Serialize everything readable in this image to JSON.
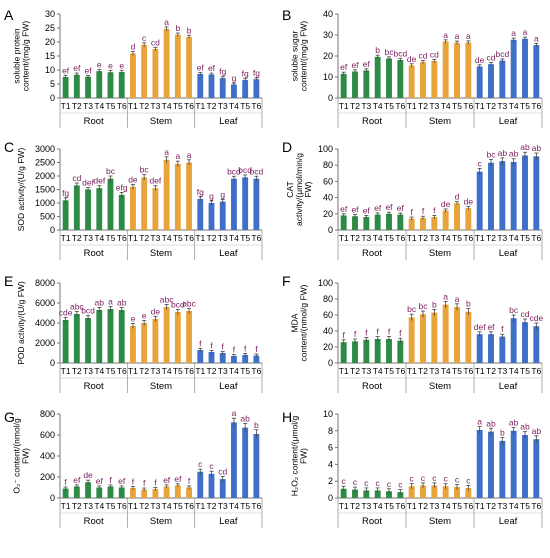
{
  "figure": {
    "treatments": [
      "T1",
      "T2",
      "T3",
      "T4",
      "T5",
      "T6"
    ],
    "tissues": [
      "Root",
      "Stem",
      "Leaf"
    ],
    "colors": {
      "Root": "#2e8b46",
      "Stem": "#e8a33a",
      "Leaf": "#3f6fc8",
      "letter": "#7a1d5e"
    }
  },
  "chart_data": [
    {
      "type": "bar",
      "panel": "A",
      "ylabel": [
        "soluble protein",
        "content/(mg/g FW)"
      ],
      "ylim": [
        0,
        30
      ],
      "yticks": [
        0,
        5,
        10,
        15,
        20,
        25,
        30
      ],
      "series": [
        {
          "name": "Root",
          "values": [
            7.5,
            8.3,
            7.6,
            9.6,
            9.2,
            9.3
          ],
          "errors": [
            0.6,
            0.6,
            0.5,
            0.6,
            0.6,
            0.6
          ],
          "letters": [
            "ef",
            "ef",
            "ef",
            "e",
            "e",
            "e"
          ]
        },
        {
          "name": "Stem",
          "values": [
            15.9,
            19.0,
            17.5,
            24.7,
            22.6,
            21.8
          ],
          "errors": [
            0.7,
            0.7,
            0.6,
            0.7,
            0.6,
            0.6
          ],
          "letters": [
            "d",
            "c",
            "cd",
            "a",
            "b",
            "b"
          ]
        },
        {
          "name": "Leaf",
          "values": [
            8.6,
            8.4,
            7.1,
            4.8,
            6.4,
            6.7
          ],
          "errors": [
            0.5,
            0.5,
            0.5,
            0.5,
            0.5,
            0.5
          ],
          "letters": [
            "ef",
            "ef",
            "fg",
            "g",
            "fg",
            "fg"
          ]
        }
      ]
    },
    {
      "type": "bar",
      "panel": "B",
      "ylabel": [
        "soluble sugar",
        "content/(mg/g FW)"
      ],
      "ylim": [
        0,
        40
      ],
      "yticks": [
        0,
        10,
        20,
        30,
        40
      ],
      "series": [
        {
          "name": "Root",
          "values": [
            11.5,
            12.6,
            13.1,
            19.6,
            18.8,
            18.1
          ],
          "errors": [
            0.8,
            0.8,
            0.8,
            0.8,
            0.8,
            0.8
          ],
          "letters": [
            "ef",
            "ef",
            "ef",
            "b",
            "bc",
            "bcd"
          ]
        },
        {
          "name": "Stem",
          "values": [
            15.5,
            17.1,
            17.6,
            26.9,
            26.3,
            26.4
          ],
          "errors": [
            0.8,
            0.8,
            0.8,
            0.8,
            0.8,
            0.8
          ],
          "letters": [
            "de",
            "cd",
            "cd",
            "a",
            "a",
            "a"
          ]
        },
        {
          "name": "Leaf",
          "values": [
            15.0,
            16.1,
            17.8,
            27.7,
            28.2,
            25.2
          ],
          "errors": [
            0.8,
            0.8,
            0.8,
            0.8,
            0.8,
            0.8
          ],
          "letters": [
            "de",
            "cd",
            "bcd",
            "a",
            "a",
            "a"
          ]
        }
      ]
    },
    {
      "type": "bar",
      "panel": "C",
      "ylabel": [
        "SOD activity/(U/g FW)"
      ],
      "ylim": [
        0,
        3000
      ],
      "yticks": [
        0,
        500,
        1000,
        1500,
        2000,
        2500,
        3000
      ],
      "series": [
        {
          "name": "Root",
          "values": [
            1100,
            1650,
            1500,
            1550,
            1900,
            1300
          ],
          "errors": [
            90,
            90,
            80,
            90,
            100,
            90
          ],
          "letters": [
            "fg",
            "cd",
            "def",
            "def",
            "bc",
            "efg"
          ]
        },
        {
          "name": "Stem",
          "values": [
            1600,
            1950,
            1550,
            2600,
            2450,
            2500
          ],
          "errors": [
            90,
            100,
            90,
            110,
            100,
            100
          ],
          "letters": [
            "de",
            "bc",
            "def",
            "a",
            "a",
            "a"
          ]
        },
        {
          "name": "Leaf",
          "values": [
            1150,
            1000,
            1050,
            1900,
            1950,
            1900
          ],
          "errors": [
            80,
            80,
            80,
            90,
            90,
            90
          ],
          "letters": [
            "fg",
            "g",
            "g",
            "bcd",
            "bcd",
            "bcd"
          ]
        }
      ]
    },
    {
      "type": "bar",
      "panel": "D",
      "ylabel": [
        "CAT",
        "activity/(μmol/min/g",
        "FW)"
      ],
      "ylim": [
        0,
        100
      ],
      "yticks": [
        0,
        20,
        40,
        60,
        80,
        100
      ],
      "series": [
        {
          "name": "Root",
          "values": [
            18,
            17,
            16,
            19,
            20,
            19
          ],
          "errors": [
            2,
            2,
            2,
            2,
            2,
            2
          ],
          "letters": [
            "ef",
            "ef",
            "ef",
            "ef",
            "ef",
            "ef"
          ]
        },
        {
          "name": "Stem",
          "values": [
            14,
            15,
            16,
            24,
            33,
            27
          ],
          "errors": [
            2,
            2,
            2,
            2,
            2,
            2
          ],
          "letters": [
            "f",
            "f",
            "f",
            "de",
            "d",
            "de"
          ]
        },
        {
          "name": "Leaf",
          "values": [
            72,
            83,
            85,
            84,
            92,
            91
          ],
          "errors": [
            4,
            4,
            4,
            4,
            4,
            4
          ],
          "letters": [
            "c",
            "bc",
            "ab",
            "ab",
            "ab",
            "ab"
          ]
        }
      ]
    },
    {
      "type": "bar",
      "panel": "E",
      "ylabel": [
        "POD activity/(U/g FW)"
      ],
      "ylim": [
        0,
        8000
      ],
      "yticks": [
        0,
        2000,
        4000,
        6000,
        8000
      ],
      "series": [
        {
          "name": "Root",
          "values": [
            4300,
            4900,
            4500,
            5300,
            5400,
            5300
          ],
          "errors": [
            250,
            250,
            250,
            250,
            250,
            250
          ],
          "letters": [
            "cde",
            "abc",
            "bcd",
            "ab",
            "a",
            "ab"
          ]
        },
        {
          "name": "Stem",
          "values": [
            3700,
            4000,
            4400,
            5600,
            5100,
            5200
          ],
          "errors": [
            250,
            250,
            250,
            250,
            250,
            250
          ],
          "letters": [
            "e",
            "e",
            "de",
            "abc",
            "bcd",
            "abc"
          ]
        },
        {
          "name": "Leaf",
          "values": [
            1300,
            1100,
            1000,
            700,
            800,
            750
          ],
          "errors": [
            150,
            150,
            150,
            150,
            150,
            150
          ],
          "letters": [
            "f",
            "f",
            "f",
            "f",
            "f",
            "f"
          ]
        }
      ]
    },
    {
      "type": "bar",
      "panel": "F",
      "ylabel": [
        "MDA",
        "content/(nmol/g FW)"
      ],
      "ylim": [
        0,
        100
      ],
      "yticks": [
        0,
        20,
        40,
        60,
        80,
        100
      ],
      "series": [
        {
          "name": "Root",
          "values": [
            26,
            27,
            29,
            30,
            30,
            28
          ],
          "errors": [
            3,
            3,
            3,
            3,
            3,
            3
          ],
          "letters": [
            "f",
            "f",
            "f",
            "f",
            "f",
            "f"
          ]
        },
        {
          "name": "Stem",
          "values": [
            57,
            61,
            63,
            73,
            70,
            64
          ],
          "errors": [
            4,
            4,
            4,
            4,
            4,
            4
          ],
          "letters": [
            "bc",
            "bc",
            "b",
            "a",
            "a",
            "b"
          ]
        },
        {
          "name": "Leaf",
          "values": [
            36,
            36,
            33,
            56,
            51,
            46
          ],
          "errors": [
            3,
            3,
            3,
            4,
            4,
            4
          ],
          "letters": [
            "def",
            "ef",
            "f",
            "bc",
            "cd",
            "cde"
          ]
        }
      ]
    },
    {
      "type": "bar",
      "panel": "G",
      "ylabel": [
        "O₂⁻ content/(nmol/g",
        "FW)"
      ],
      "ylim": [
        0,
        800
      ],
      "yticks": [
        0,
        200,
        400,
        600,
        800
      ],
      "series": [
        {
          "name": "Root",
          "values": [
            90,
            110,
            150,
            100,
            110,
            100
          ],
          "errors": [
            15,
            15,
            20,
            15,
            15,
            15
          ],
          "letters": [
            "f",
            "ef",
            "de",
            "ef",
            "f",
            "ef"
          ]
        },
        {
          "name": "Stem",
          "values": [
            95,
            80,
            85,
            110,
            120,
            100
          ],
          "errors": [
            15,
            15,
            15,
            15,
            15,
            15
          ],
          "letters": [
            "f",
            "f",
            "f",
            "ef",
            "ef",
            "f"
          ]
        },
        {
          "name": "Leaf",
          "values": [
            250,
            230,
            180,
            720,
            670,
            610
          ],
          "errors": [
            25,
            25,
            25,
            40,
            40,
            40
          ],
          "letters": [
            "c",
            "c",
            "cd",
            "a",
            "ab",
            "b"
          ]
        }
      ]
    },
    {
      "type": "bar",
      "panel": "H",
      "ylabel": [
        "H₂O₂ content/(μmol/g",
        "FW)"
      ],
      "ylim": [
        0,
        10
      ],
      "yticks": [
        0,
        2,
        4,
        6,
        8,
        10
      ],
      "series": [
        {
          "name": "Root",
          "values": [
            1.1,
            1.0,
            0.9,
            0.9,
            0.8,
            0.7
          ],
          "errors": [
            0.3,
            0.3,
            0.3,
            0.3,
            0.3,
            0.3
          ],
          "letters": [
            "c",
            "c",
            "c",
            "c",
            "c",
            "c"
          ]
        },
        {
          "name": "Stem",
          "values": [
            1.4,
            1.5,
            1.5,
            1.4,
            1.3,
            1.2
          ],
          "errors": [
            0.3,
            0.3,
            0.3,
            0.3,
            0.3,
            0.3
          ],
          "letters": [
            "c",
            "c",
            "c",
            "c",
            "c",
            "c"
          ]
        },
        {
          "name": "Leaf",
          "values": [
            8.1,
            7.9,
            6.8,
            8.0,
            7.5,
            7.0
          ],
          "errors": [
            0.4,
            0.4,
            0.4,
            0.4,
            0.4,
            0.4
          ],
          "letters": [
            "a",
            "ab",
            "b",
            "ab",
            "ab",
            "ab"
          ]
        }
      ]
    }
  ]
}
